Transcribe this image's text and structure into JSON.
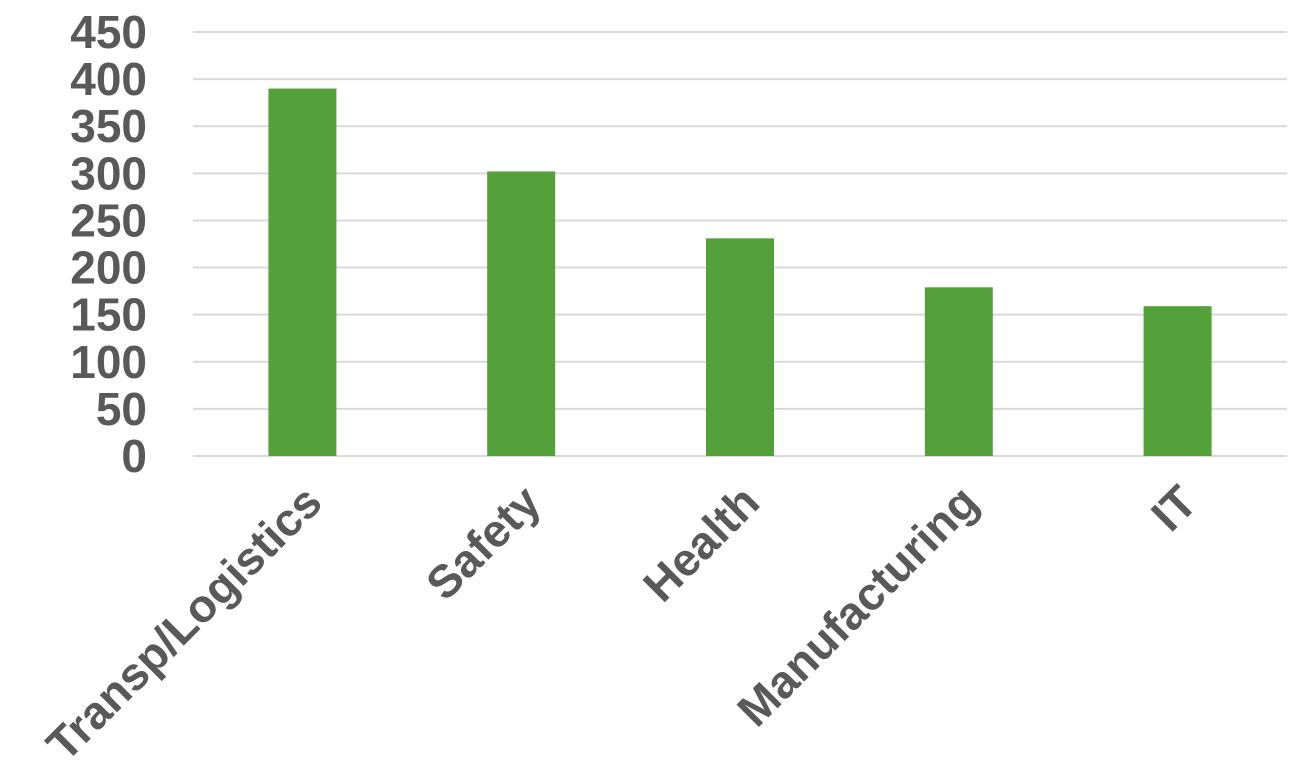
{
  "chart_data": {
    "type": "bar",
    "categories": [
      "Transp/Logistics",
      "Safety",
      "Health",
      "Manufacturing",
      "IT"
    ],
    "values": [
      390,
      302,
      231,
      179,
      159
    ],
    "title": "",
    "xlabel": "",
    "ylabel": "",
    "ylim": [
      0,
      450
    ],
    "yticks": [
      "0",
      "50",
      "100",
      "150",
      "200",
      "250",
      "300",
      "350",
      "400",
      "450"
    ],
    "grid": true,
    "legend": "none",
    "colors": {
      "bar": "#54a03a",
      "grid": "#d9d9d9",
      "text": "#595959"
    }
  }
}
